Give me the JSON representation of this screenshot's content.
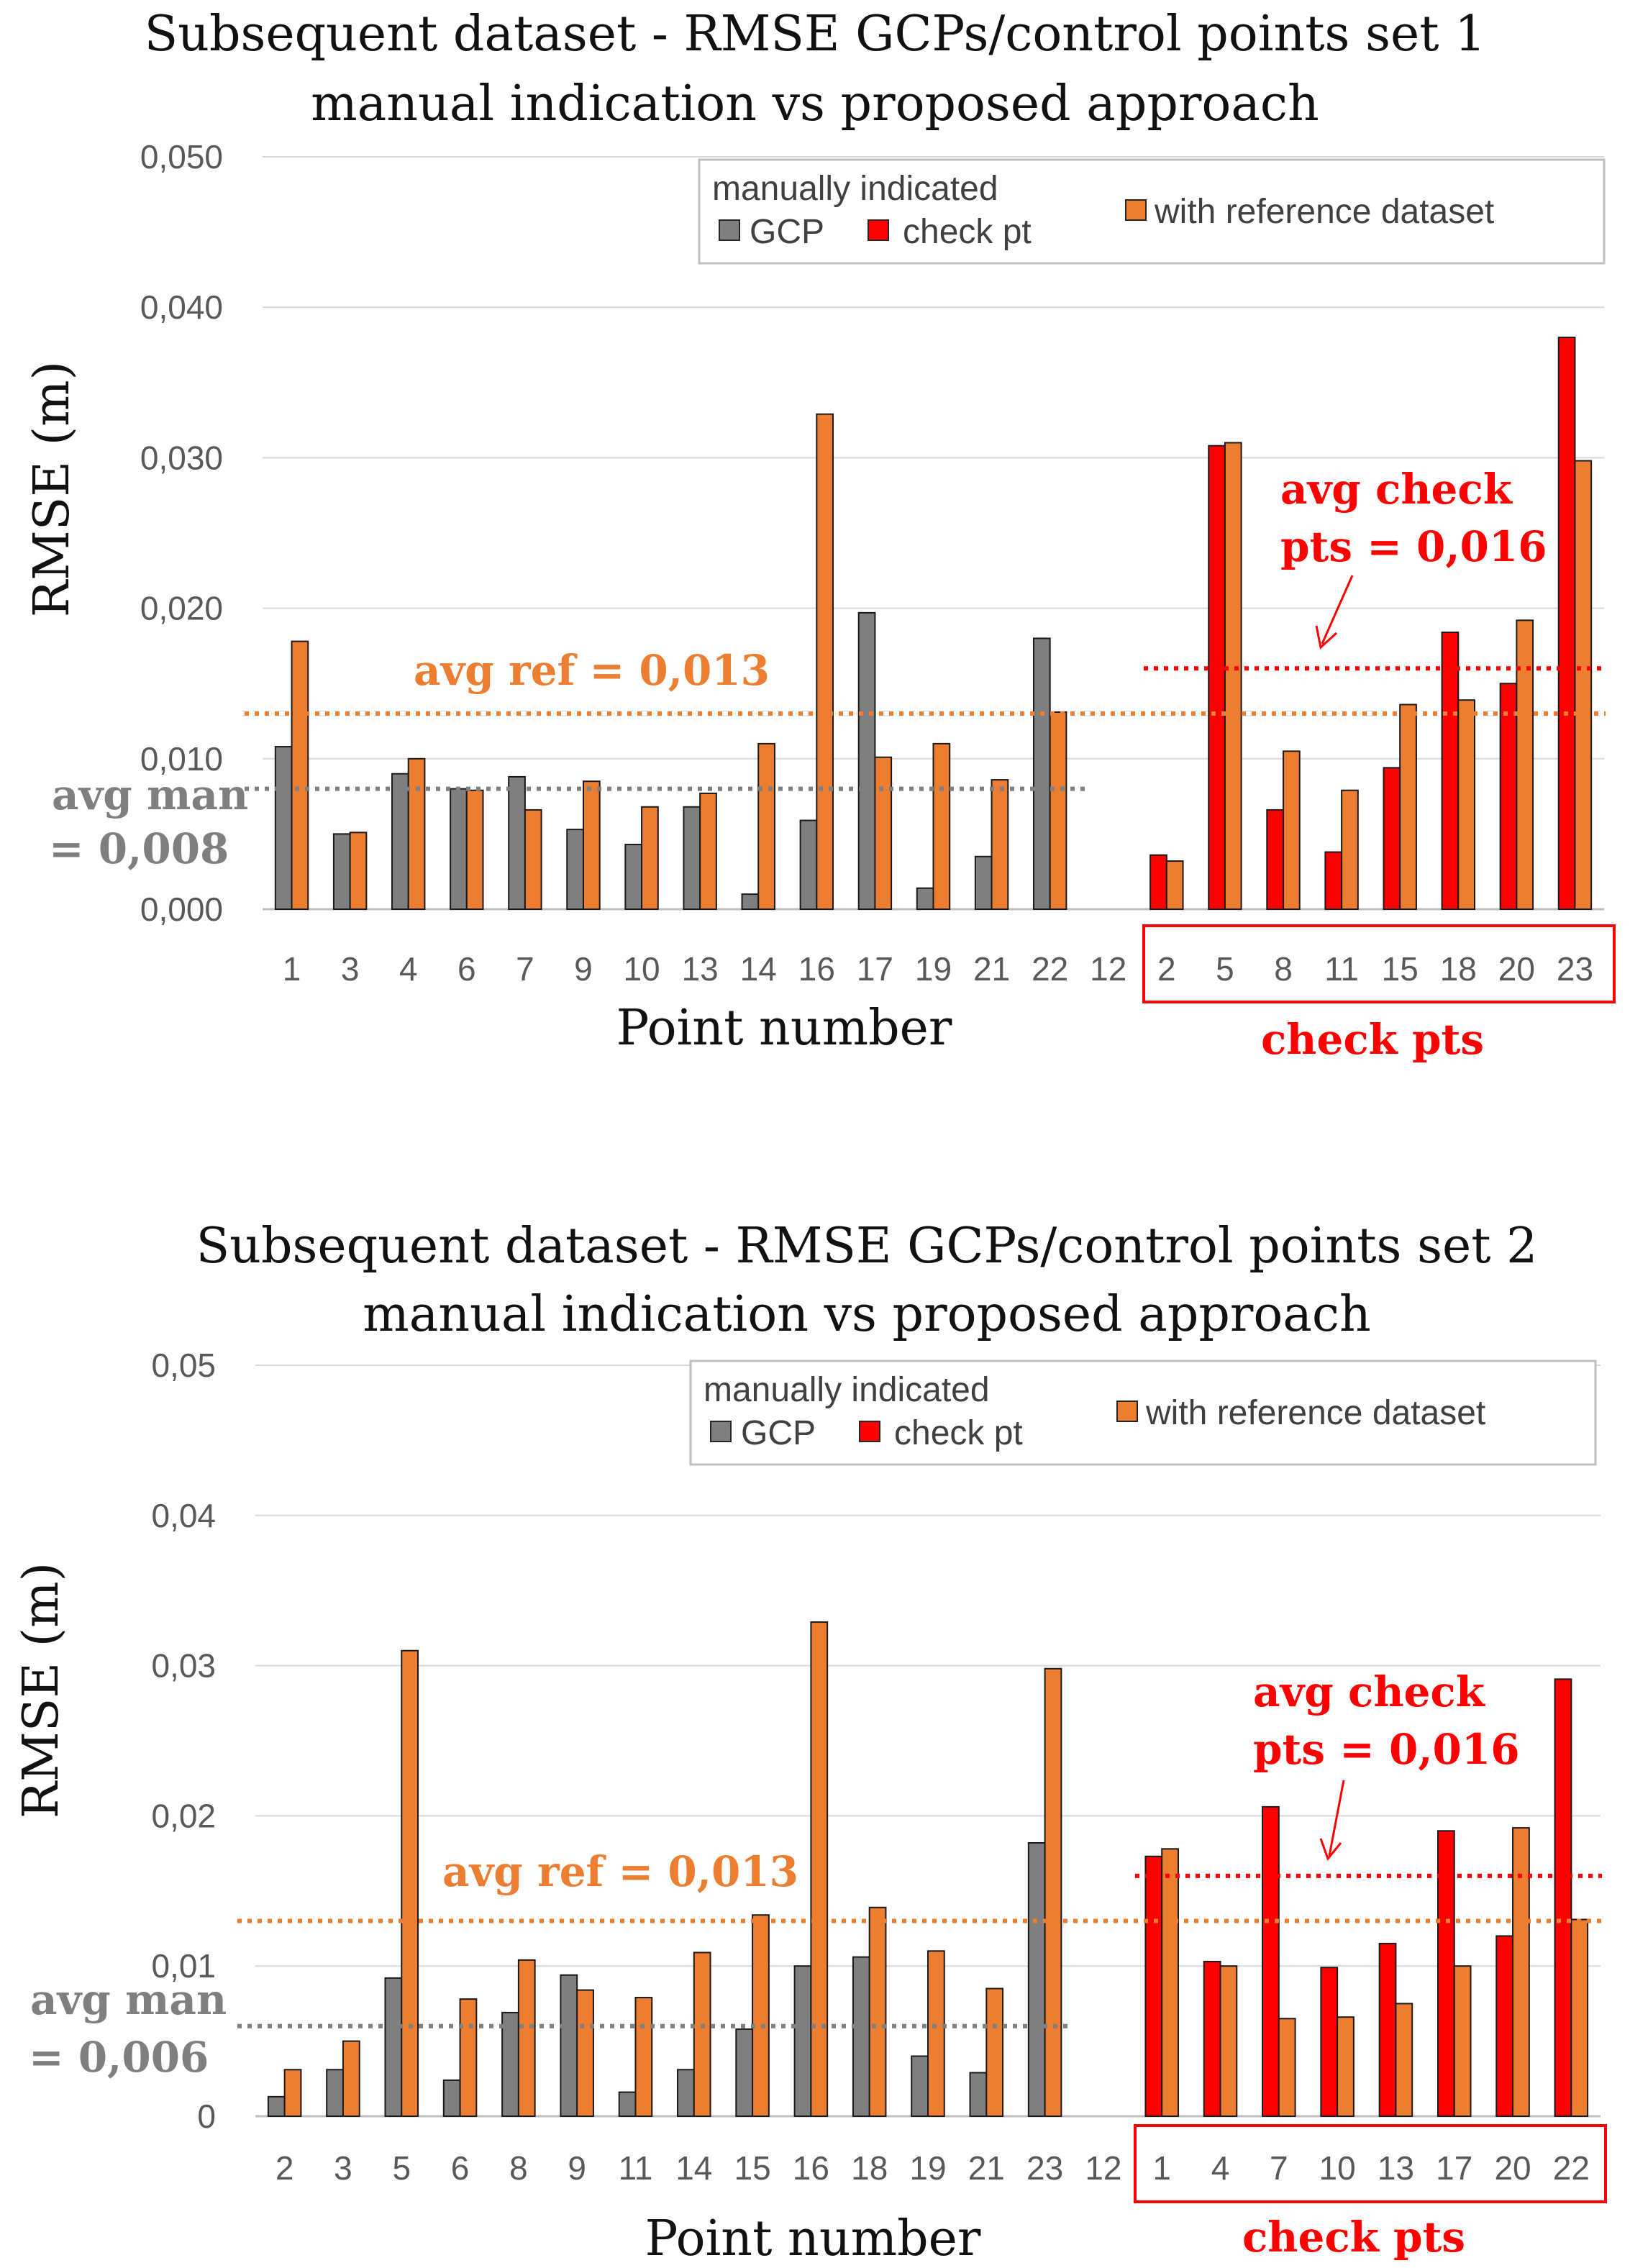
{
  "colors": {
    "gcp": "#7f7f7f",
    "check": "#ff0000",
    "ref": "#ed7d31",
    "avg_man": "#7f7f7f",
    "avg_ref": "#ed7d31",
    "avg_check": "#ff0000",
    "grid": "#d9d9d9"
  },
  "chart_data": [
    {
      "type": "bar",
      "title_line1": "Subsequent dataset - RMSE GCPs/control points set 1",
      "title_line2": "manual indication vs proposed approach",
      "xlabel": "Point number",
      "ylabel": "RMSE (m)",
      "ylim": [
        0,
        0.05
      ],
      "yticks": [
        {
          "value": 0.0,
          "label": "0,000"
        },
        {
          "value": 0.01,
          "label": "0,010"
        },
        {
          "value": 0.02,
          "label": "0,020"
        },
        {
          "value": 0.03,
          "label": "0,030"
        },
        {
          "value": 0.04,
          "label": "0,040"
        },
        {
          "value": 0.05,
          "label": "0,050"
        }
      ],
      "categories": [
        "1",
        "3",
        "4",
        "6",
        "7",
        "9",
        "10",
        "13",
        "14",
        "16",
        "17",
        "19",
        "21",
        "22",
        "12",
        "2",
        "5",
        "8",
        "11",
        "15",
        "18",
        "20",
        "23"
      ],
      "check_points": [
        "2",
        "5",
        "8",
        "11",
        "15",
        "18",
        "20",
        "23"
      ],
      "series": [
        {
          "name": "manually indicated GCP",
          "role": "gcp",
          "values": [
            0.0108,
            0.005,
            0.009,
            0.008,
            0.0088,
            0.0053,
            0.0043,
            0.0068,
            0.001,
            0.0059,
            0.0197,
            0.0014,
            0.0035,
            0.018,
            null,
            null,
            null,
            null,
            null,
            null,
            null,
            null,
            null
          ]
        },
        {
          "name": "manually indicated check pt",
          "role": "check",
          "values": [
            null,
            null,
            null,
            null,
            null,
            null,
            null,
            null,
            null,
            null,
            null,
            null,
            null,
            null,
            null,
            0.0036,
            0.0308,
            0.0066,
            0.0038,
            0.0094,
            0.0184,
            0.015,
            0.038
          ]
        },
        {
          "name": "with reference dataset",
          "role": "ref",
          "values": [
            0.0178,
            0.0051,
            0.01,
            0.0079,
            0.0066,
            0.0085,
            0.0068,
            0.0077,
            0.011,
            0.0329,
            0.0101,
            0.011,
            0.0086,
            0.0131,
            null,
            0.0032,
            0.031,
            0.0105,
            0.0079,
            0.0136,
            0.0139,
            0.0192,
            0.0298
          ]
        }
      ],
      "averages": {
        "man": 0.008,
        "ref": 0.013,
        "check": 0.016
      },
      "labels": {
        "avg_man_line1": "avg man",
        "avg_man_line2": "= 0,008",
        "avg_ref": "avg ref = 0,013",
        "avg_check_line1": "avg check",
        "avg_check_line2": "pts = 0,016",
        "check_pts": "check pts"
      },
      "legend": {
        "header": "manually indicated",
        "gcp": "GCP",
        "check": "check pt",
        "ref": "with reference dataset"
      }
    },
    {
      "type": "bar",
      "title_line1": "Subsequent dataset - RMSE GCPs/control points set 2",
      "title_line2": "manual indication vs proposed approach",
      "xlabel": "Point number",
      "ylabel": "RMSE (m)",
      "ylim": [
        0,
        0.05
      ],
      "yticks": [
        {
          "value": 0.0,
          "label": "0"
        },
        {
          "value": 0.01,
          "label": "0,01"
        },
        {
          "value": 0.02,
          "label": "0,02"
        },
        {
          "value": 0.03,
          "label": "0,03"
        },
        {
          "value": 0.04,
          "label": "0,04"
        },
        {
          "value": 0.05,
          "label": "0,05"
        }
      ],
      "categories": [
        "2",
        "3",
        "5",
        "6",
        "8",
        "9",
        "11",
        "14",
        "15",
        "16",
        "18",
        "19",
        "21",
        "23",
        "12",
        "1",
        "4",
        "7",
        "10",
        "13",
        "17",
        "20",
        "22"
      ],
      "check_points": [
        "1",
        "4",
        "7",
        "10",
        "13",
        "17",
        "20",
        "22"
      ],
      "series": [
        {
          "name": "manually indicated GCP",
          "role": "gcp",
          "values": [
            0.0013,
            0.0031,
            0.0092,
            0.0024,
            0.0069,
            0.0094,
            0.0016,
            0.0031,
            0.0058,
            0.01,
            0.0106,
            0.004,
            0.0029,
            0.0182,
            null,
            null,
            null,
            null,
            null,
            null,
            null,
            null,
            null
          ]
        },
        {
          "name": "manually indicated check pt",
          "role": "check",
          "values": [
            null,
            null,
            null,
            null,
            null,
            null,
            null,
            null,
            null,
            null,
            null,
            null,
            null,
            null,
            null,
            0.0173,
            0.0103,
            0.0206,
            0.0099,
            0.0115,
            0.019,
            0.012,
            0.0291
          ]
        },
        {
          "name": "with reference dataset",
          "role": "ref",
          "values": [
            0.0031,
            0.005,
            0.031,
            0.0078,
            0.0104,
            0.0084,
            0.0079,
            0.0109,
            0.0134,
            0.0329,
            0.0139,
            0.011,
            0.0085,
            0.0298,
            null,
            0.0178,
            0.01,
            0.0065,
            0.0066,
            0.0075,
            0.01,
            0.0192,
            0.0131
          ]
        }
      ],
      "averages": {
        "man": 0.006,
        "ref": 0.013,
        "check": 0.016
      },
      "labels": {
        "avg_man_line1": "avg man",
        "avg_man_line2": "= 0,006",
        "avg_ref": "avg ref = 0,013",
        "avg_check_line1": "avg check",
        "avg_check_line2": "pts = 0,016",
        "check_pts": "check pts"
      },
      "legend": {
        "header": "manually indicated",
        "gcp": "GCP",
        "check": "check pt",
        "ref": "with reference dataset"
      }
    }
  ]
}
